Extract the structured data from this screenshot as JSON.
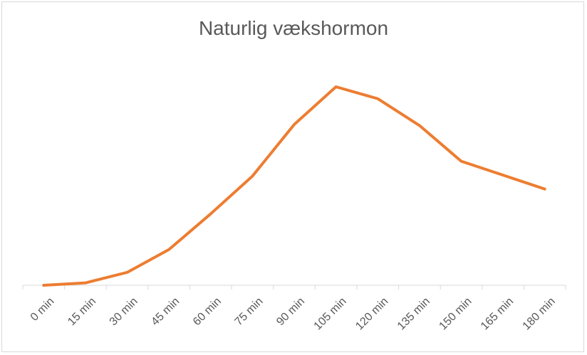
{
  "chart_data": {
    "type": "line",
    "title": "Naturlig vækshormon",
    "xlabel": "",
    "ylabel": "",
    "categories": [
      "0 min",
      "15 min",
      "30 min",
      "45 min",
      "60 min",
      "75 min",
      "90 min",
      "105 min",
      "120 min",
      "135 min",
      "150 min",
      "165 min",
      "180 min"
    ],
    "series": [
      {
        "name": "Naturlig vækshormon",
        "values": [
          0,
          1.2,
          6.5,
          18,
          36,
          55,
          81,
          100,
          94,
          80.5,
          62.5,
          55.5,
          48.5
        ],
        "color": "#ed7d31"
      }
    ],
    "ylim": [
      0,
      100
    ],
    "grid": false,
    "legend": "none"
  }
}
